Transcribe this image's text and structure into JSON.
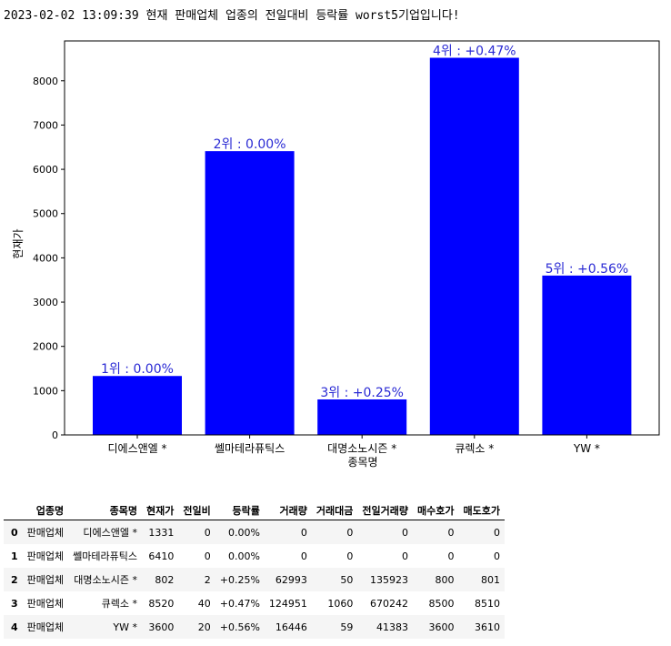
{
  "headline": "2023-02-02 13:09:39 현재 판매업체 업종의 전일대비 등락률 worst5기업입니다!",
  "colors": {
    "bar": "#0000ff",
    "label": "#2a2ad4"
  },
  "chart_data": {
    "type": "bar",
    "title": "",
    "xlabel": "종목명",
    "ylabel": "현재가",
    "ylim": [
      0,
      8900
    ],
    "yticks": [
      0,
      1000,
      2000,
      3000,
      4000,
      5000,
      6000,
      7000,
      8000
    ],
    "categories": [
      "디에스앤엘 *",
      "쎌마테라퓨틱스",
      "대명소노시즌 *",
      "큐렉소 *",
      "YW *"
    ],
    "values": [
      1331,
      6410,
      802,
      8520,
      3600
    ],
    "bar_labels": [
      "1위 : 0.00%",
      "2위 : 0.00%",
      "3위 : +0.25%",
      "4위 : +0.47%",
      "5위 : +0.56%"
    ],
    "grid": false,
    "legend": "none"
  },
  "table": {
    "columns": [
      "",
      "업종명",
      "종목명",
      "현재가",
      "전일비",
      "등락률",
      "거래량",
      "거래대금",
      "전일거래량",
      "매수호가",
      "매도호가"
    ],
    "rows": [
      [
        "0",
        "판매업체",
        "디에스앤엘 *",
        "1331",
        "0",
        "0.00%",
        "0",
        "0",
        "0",
        "0",
        "0"
      ],
      [
        "1",
        "판매업체",
        "쎌마테라퓨틱스",
        "6410",
        "0",
        "0.00%",
        "0",
        "0",
        "0",
        "0",
        "0"
      ],
      [
        "2",
        "판매업체",
        "대명소노시즌 *",
        "802",
        "2",
        "+0.25%",
        "62993",
        "50",
        "135923",
        "800",
        "801"
      ],
      [
        "3",
        "판매업체",
        "큐렉소 *",
        "8520",
        "40",
        "+0.47%",
        "124951",
        "1060",
        "670242",
        "8500",
        "8510"
      ],
      [
        "4",
        "판매업체",
        "YW *",
        "3600",
        "20",
        "+0.56%",
        "16446",
        "59",
        "41383",
        "3600",
        "3610"
      ]
    ]
  }
}
